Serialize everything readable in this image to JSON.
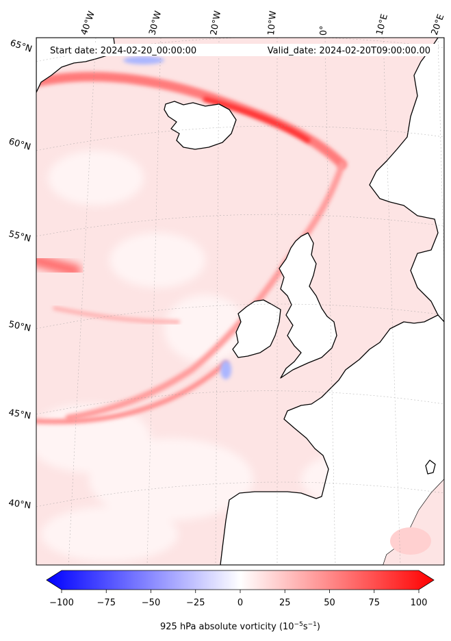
{
  "header": {
    "start_date": "Start date: 2024-02-20_00:00:00",
    "valid_date": "Valid_date: 2024-02-20T09:00:00.00"
  },
  "longitude_labels": [
    "40°W",
    "30°W",
    "20°W",
    "10°W",
    "0°",
    "10°E",
    "20°E"
  ],
  "latitude_labels": [
    "65°N",
    "60°N",
    "55°N",
    "50°N",
    "45°N",
    "40°N"
  ],
  "colorbar": {
    "ticks": [
      "−100",
      "−75",
      "−50",
      "−25",
      "0",
      "25",
      "50",
      "75",
      "100"
    ],
    "label_main": "925 hPa absolute vorticity (10",
    "label_exp1": "−5",
    "label_mid": "s",
    "label_exp2": "−1",
    "label_end": ")",
    "min": -100,
    "max": 100,
    "negative_color": "#0000ff",
    "zero_color": "#ffffff",
    "positive_color": "#ff0000"
  },
  "map": {
    "background_color": "#fde4e4",
    "coastline_color": "#000000"
  }
}
